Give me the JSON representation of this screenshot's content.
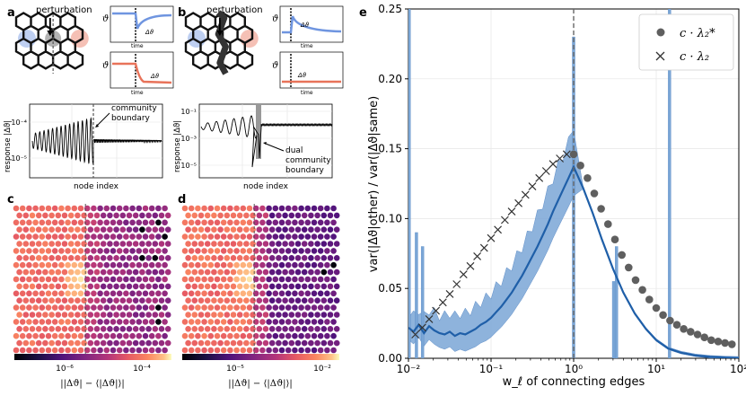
{
  "panels": {
    "a": {
      "letter": "a",
      "title": "perturbation"
    },
    "b": {
      "letter": "b",
      "title": "perturbation"
    },
    "c": {
      "letter": "c"
    },
    "d": {
      "letter": "d"
    },
    "e": {
      "letter": "e"
    }
  },
  "insets": {
    "y_symbol": "ϑ",
    "x_label": "time",
    "delta_label": "Δϑ"
  },
  "panel_a_response": {
    "ylabel": "response |Δϑ|",
    "xlabel": "node index",
    "ticks": [
      "10⁻⁴",
      "10⁻⁵"
    ],
    "annotation": [
      "community",
      "boundary"
    ]
  },
  "panel_b_response": {
    "ylabel": "response |Δϑ|",
    "xlabel": "node index",
    "ticks": [
      "10⁻¹",
      "10⁻³",
      "10⁻⁵"
    ],
    "annotation": [
      "dual",
      "community",
      "boundary"
    ]
  },
  "colorbar_c": {
    "ticks": [
      "10⁻⁶",
      "10⁻⁴"
    ],
    "label": "||Δϑ| − ⟨|Δϑ|⟩|"
  },
  "colorbar_d": {
    "ticks": [
      "10⁻⁵",
      "10⁻²"
    ],
    "label": "||Δϑ| − ⟨|Δϑ|⟩|"
  },
  "colors": {
    "blue": "#1f5fa8",
    "band": "#7aa6d6",
    "red": "#e8735a",
    "inset_blue": "#6f95e0",
    "marker_gray": "#5f5f5f"
  },
  "chart_data": {
    "type": "line",
    "xlabel": "w_ℓ of connecting edges",
    "ylabel": "var(|Δϑ|other) / var(|Δϑ|same)",
    "xscale": "log",
    "xlim": [
      0.01,
      100
    ],
    "ylim": [
      0,
      0.25
    ],
    "xticks": [
      "10⁻²",
      "10⁻¹",
      "10⁰",
      "10¹",
      "10²"
    ],
    "yticks": [
      "0.00",
      "0.05",
      "0.10",
      "0.15",
      "0.20",
      "0.25"
    ],
    "vline_x": 1,
    "legend_position": "top-right",
    "legend": [
      "c · λ₂*",
      "c · λ₂"
    ],
    "series": [
      {
        "name": "c · λ₂*",
        "marker": "circle",
        "x": [
          1.0,
          1.21,
          1.47,
          1.78,
          2.15,
          2.61,
          3.16,
          3.83,
          4.64,
          5.62,
          6.81,
          8.25,
          10.0,
          12.1,
          14.7,
          17.8,
          21.5,
          26.1,
          31.6,
          38.3,
          46.4,
          56.2,
          68.1,
          82.5
        ],
        "y": [
          0.146,
          0.138,
          0.129,
          0.118,
          0.107,
          0.096,
          0.085,
          0.074,
          0.065,
          0.056,
          0.049,
          0.042,
          0.036,
          0.031,
          0.027,
          0.024,
          0.021,
          0.019,
          0.017,
          0.015,
          0.013,
          0.012,
          0.011,
          0.01
        ]
      },
      {
        "name": "c · λ₂",
        "marker": "x",
        "x": [
          0.0121,
          0.0147,
          0.0178,
          0.0215,
          0.0261,
          0.0316,
          0.0383,
          0.0464,
          0.0562,
          0.0681,
          0.0825,
          0.1,
          0.121,
          0.147,
          0.178,
          0.215,
          0.261,
          0.316,
          0.383,
          0.464,
          0.562,
          0.681,
          0.825
        ],
        "y": [
          0.017,
          0.022,
          0.028,
          0.034,
          0.04,
          0.046,
          0.053,
          0.06,
          0.066,
          0.073,
          0.079,
          0.086,
          0.092,
          0.099,
          0.105,
          0.111,
          0.117,
          0.123,
          0.129,
          0.134,
          0.139,
          0.143,
          0.146
        ]
      },
      {
        "name": "simulation mean",
        "marker": "none",
        "x": [
          0.01,
          0.0115,
          0.0133,
          0.0154,
          0.0178,
          0.0205,
          0.0237,
          0.0274,
          0.0316,
          0.0365,
          0.0422,
          0.0487,
          0.0562,
          0.0649,
          0.075,
          0.0866,
          0.1,
          0.115,
          0.133,
          0.154,
          0.178,
          0.205,
          0.237,
          0.274,
          0.316,
          0.365,
          0.422,
          0.487,
          0.562,
          0.649,
          0.75,
          0.866,
          1.0,
          1.3,
          1.7,
          2.2,
          3.0,
          4.0,
          5.5,
          7.5,
          10,
          14,
          20,
          30,
          45,
          70,
          100
        ],
        "y": [
          0.022,
          0.019,
          0.024,
          0.018,
          0.023,
          0.02,
          0.018,
          0.017,
          0.019,
          0.016,
          0.018,
          0.017,
          0.019,
          0.021,
          0.024,
          0.026,
          0.029,
          0.033,
          0.037,
          0.042,
          0.047,
          0.053,
          0.059,
          0.066,
          0.073,
          0.08,
          0.088,
          0.096,
          0.105,
          0.113,
          0.121,
          0.129,
          0.137,
          0.122,
          0.104,
          0.085,
          0.064,
          0.047,
          0.032,
          0.021,
          0.013,
          0.007,
          0.004,
          0.002,
          0.001,
          0.0005,
          0.0002
        ]
      }
    ]
  }
}
